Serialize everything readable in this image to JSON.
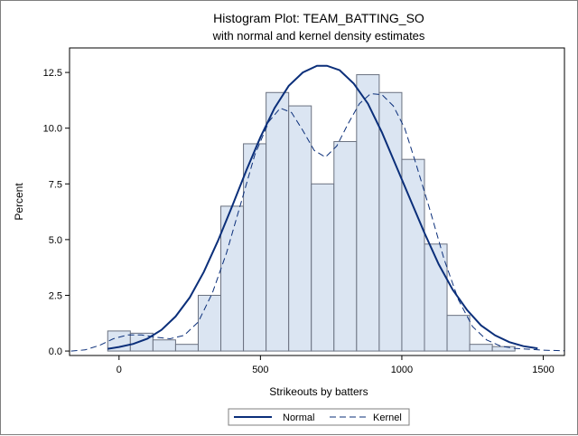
{
  "chart_data": {
    "type": "histogram",
    "title": "Histogram Plot: TEAM_BATTING_SO",
    "subtitle": "with normal and kernel density estimates",
    "xlabel": "Strikeouts by batters",
    "ylabel": "Percent",
    "xlim": [
      -175,
      1575
    ],
    "ylim": [
      -0.2,
      13.6
    ],
    "xticks": [
      0,
      500,
      1000,
      1500
    ],
    "yticks": [
      0.0,
      2.5,
      5.0,
      7.5,
      10.0,
      12.5
    ],
    "xtick_labels": [
      "0",
      "500",
      "1000",
      "1500"
    ],
    "ytick_labels": [
      "0.0",
      "2.5",
      "5.0",
      "7.5",
      "10.0",
      "12.5"
    ],
    "bin_width": 80,
    "bins": [
      {
        "start": -40,
        "end": 40,
        "value": 0.9
      },
      {
        "start": 40,
        "end": 120,
        "value": 0.8
      },
      {
        "start": 120,
        "end": 200,
        "value": 0.5
      },
      {
        "start": 200,
        "end": 280,
        "value": 0.3
      },
      {
        "start": 280,
        "end": 360,
        "value": 2.5
      },
      {
        "start": 360,
        "end": 440,
        "value": 6.5
      },
      {
        "start": 440,
        "end": 520,
        "value": 9.3
      },
      {
        "start": 520,
        "end": 600,
        "value": 11.6
      },
      {
        "start": 600,
        "end": 680,
        "value": 11.0
      },
      {
        "start": 680,
        "end": 760,
        "value": 7.5
      },
      {
        "start": 760,
        "end": 840,
        "value": 9.4
      },
      {
        "start": 840,
        "end": 920,
        "value": 12.4
      },
      {
        "start": 920,
        "end": 1000,
        "value": 11.6
      },
      {
        "start": 1000,
        "end": 1080,
        "value": 8.6
      },
      {
        "start": 1080,
        "end": 1160,
        "value": 4.8
      },
      {
        "start": 1160,
        "end": 1240,
        "value": 1.6
      },
      {
        "start": 1240,
        "end": 1320,
        "value": 0.3
      },
      {
        "start": 1320,
        "end": 1400,
        "value": 0.2
      }
    ],
    "series": [
      {
        "name": "Normal",
        "style": "solid",
        "color": "#0b2f7a",
        "points": [
          [
            -40,
            0.1
          ],
          [
            0,
            0.18
          ],
          [
            50,
            0.32
          ],
          [
            100,
            0.55
          ],
          [
            150,
            0.95
          ],
          [
            200,
            1.55
          ],
          [
            250,
            2.4
          ],
          [
            300,
            3.55
          ],
          [
            350,
            4.95
          ],
          [
            400,
            6.5
          ],
          [
            450,
            8.1
          ],
          [
            500,
            9.6
          ],
          [
            550,
            10.9
          ],
          [
            600,
            11.9
          ],
          [
            650,
            12.5
          ],
          [
            700,
            12.8
          ],
          [
            735,
            12.8
          ],
          [
            780,
            12.6
          ],
          [
            830,
            12.0
          ],
          [
            880,
            11.1
          ],
          [
            930,
            9.8
          ],
          [
            980,
            8.3
          ],
          [
            1030,
            6.8
          ],
          [
            1080,
            5.3
          ],
          [
            1130,
            3.9
          ],
          [
            1180,
            2.75
          ],
          [
            1230,
            1.85
          ],
          [
            1280,
            1.15
          ],
          [
            1330,
            0.7
          ],
          [
            1380,
            0.4
          ],
          [
            1430,
            0.22
          ],
          [
            1480,
            0.12
          ]
        ]
      },
      {
        "name": "Kernel",
        "style": "dashed",
        "color": "#0b2f7a",
        "points": [
          [
            -170,
            0.0
          ],
          [
            -120,
            0.05
          ],
          [
            -70,
            0.25
          ],
          [
            -20,
            0.55
          ],
          [
            30,
            0.72
          ],
          [
            80,
            0.72
          ],
          [
            130,
            0.62
          ],
          [
            180,
            0.55
          ],
          [
            230,
            0.7
          ],
          [
            280,
            1.3
          ],
          [
            330,
            2.6
          ],
          [
            380,
            4.4
          ],
          [
            430,
            6.6
          ],
          [
            480,
            8.8
          ],
          [
            530,
            10.3
          ],
          [
            570,
            10.9
          ],
          [
            610,
            10.7
          ],
          [
            650,
            9.9
          ],
          [
            690,
            9.0
          ],
          [
            730,
            8.7
          ],
          [
            770,
            9.2
          ],
          [
            810,
            10.2
          ],
          [
            850,
            11.1
          ],
          [
            890,
            11.55
          ],
          [
            930,
            11.5
          ],
          [
            970,
            11.0
          ],
          [
            1010,
            10.0
          ],
          [
            1050,
            8.4
          ],
          [
            1100,
            6.3
          ],
          [
            1150,
            4.1
          ],
          [
            1200,
            2.3
          ],
          [
            1250,
            1.1
          ],
          [
            1300,
            0.5
          ],
          [
            1350,
            0.22
          ],
          [
            1400,
            0.12
          ],
          [
            1450,
            0.08
          ],
          [
            1500,
            0.04
          ],
          [
            1575,
            0.01
          ]
        ]
      }
    ],
    "legend": {
      "position": "bottom-center",
      "entries": [
        "Normal",
        "Kernel"
      ]
    },
    "colors": {
      "bar_fill": "#dbe5f2",
      "bar_stroke": "#6a7180",
      "line": "#0b2f7a"
    }
  }
}
